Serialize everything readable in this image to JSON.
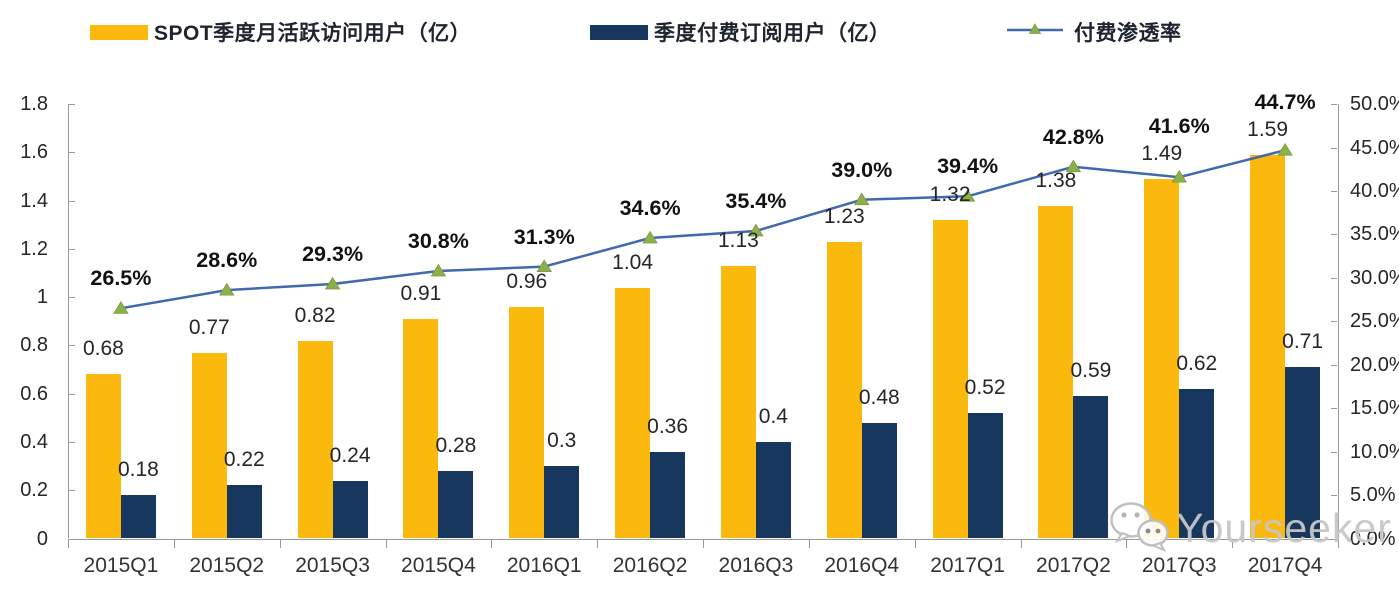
{
  "legend": {
    "items": [
      {
        "label": "SPOT季度月活跃访问用户（亿）",
        "marker": "bar-swatch",
        "color": "#FBB80D"
      },
      {
        "label": "季度付费订阅用户（亿）",
        "marker": "bar-swatch",
        "color": "#17375E"
      },
      {
        "label": "付费渗透率",
        "marker": "line-triangle-swatch",
        "color": "#4169AF",
        "marker_color": "#8CB04A"
      }
    ]
  },
  "chart_data": {
    "type": "combo-bar-line",
    "categories": [
      "2015Q1",
      "2015Q2",
      "2015Q3",
      "2015Q4",
      "2016Q1",
      "2016Q2",
      "2016Q3",
      "2016Q4",
      "2017Q1",
      "2017Q2",
      "2017Q3",
      "2017Q4"
    ],
    "series": [
      {
        "name": "SPOT季度月活跃访问用户（亿）",
        "type": "bar",
        "axis": "left",
        "color": "#FBB80D",
        "values": [
          0.68,
          0.77,
          0.82,
          0.91,
          0.96,
          1.04,
          1.13,
          1.23,
          1.32,
          1.38,
          1.49,
          1.59
        ],
        "labels": [
          "0.68",
          "0.77",
          "0.82",
          "0.91",
          "0.96",
          "1.04",
          "1.13",
          "1.23",
          "1.32",
          "1.38",
          "1.49",
          "1.59"
        ]
      },
      {
        "name": "季度付费订阅用户（亿）",
        "type": "bar",
        "axis": "left",
        "color": "#17375E",
        "values": [
          0.18,
          0.22,
          0.24,
          0.28,
          0.3,
          0.36,
          0.4,
          0.48,
          0.52,
          0.59,
          0.62,
          0.71
        ],
        "labels": [
          "0.18",
          "0.22",
          "0.24",
          "0.28",
          "0.3",
          "0.36",
          "0.4",
          "0.48",
          "0.52",
          "0.59",
          "0.62",
          "0.71"
        ]
      },
      {
        "name": "付费渗透率",
        "type": "line",
        "axis": "right",
        "color": "#4169AF",
        "marker": "triangle",
        "marker_color": "#8CB04A",
        "values": [
          26.5,
          28.6,
          29.3,
          30.8,
          31.3,
          34.6,
          35.4,
          39.0,
          39.4,
          42.8,
          41.6,
          44.7
        ],
        "labels": [
          "26.5%",
          "28.6%",
          "29.3%",
          "30.8%",
          "31.3%",
          "34.6%",
          "35.4%",
          "39.0%",
          "39.4%",
          "42.8%",
          "41.6%",
          "44.7%"
        ]
      }
    ],
    "left_axis": {
      "min": 0,
      "max": 1.8,
      "step": 0.2,
      "ticks": [
        "0",
        "0.2",
        "0.4",
        "0.6",
        "0.8",
        "1",
        "1.2",
        "1.4",
        "1.6",
        "1.8"
      ]
    },
    "right_axis": {
      "min": 0,
      "max": 50,
      "step": 5,
      "unit": "%",
      "ticks": [
        "0.0%",
        "5.0%",
        "10.0%",
        "15.0%",
        "20.0%",
        "25.0%",
        "30.0%",
        "35.0%",
        "40.0%",
        "45.0%",
        "50.0%"
      ]
    },
    "grid": false,
    "legend_position": "top"
  },
  "watermark": {
    "text": "Yourseeker",
    "icon": "wechat-icon"
  },
  "colors": {
    "axis": "#999999",
    "bar_label": "#262626",
    "x_label": "#333333",
    "watermark": "#c7c7c7"
  }
}
